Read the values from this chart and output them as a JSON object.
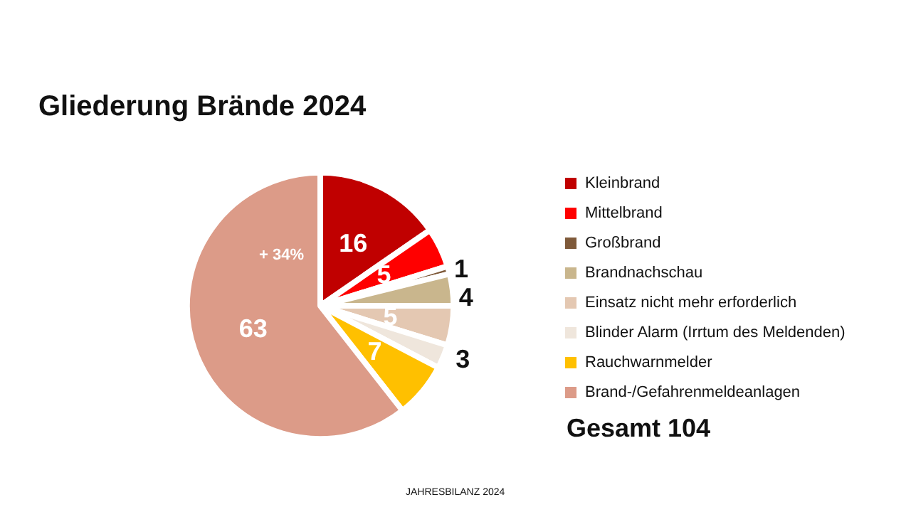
{
  "chart_data": {
    "type": "pie",
    "title": "Gliederung Brände 2024",
    "categories": [
      "Kleinbrand",
      "Mittelbrand",
      "Großbrand",
      "Brandnachschau",
      "Einsatz nicht mehr erforderlich",
      "Blinder Alarm (Irrtum des Meldenden)",
      "Rauchwarnmelder",
      "Brand-/Gefahrenmeldeanlagen"
    ],
    "values": [
      16,
      5,
      1,
      4,
      5,
      3,
      7,
      63
    ],
    "colors": [
      "#c00000",
      "#ff0000",
      "#7f5a3a",
      "#c9b68d",
      "#e4c8b2",
      "#efe6dc",
      "#ffc000",
      "#dc9b88"
    ],
    "data_labels": true,
    "legend": "right",
    "annotations": [
      "+ 34%",
      "Gesamt 104",
      "JAHRESBILANZ 2024"
    ]
  }
}
